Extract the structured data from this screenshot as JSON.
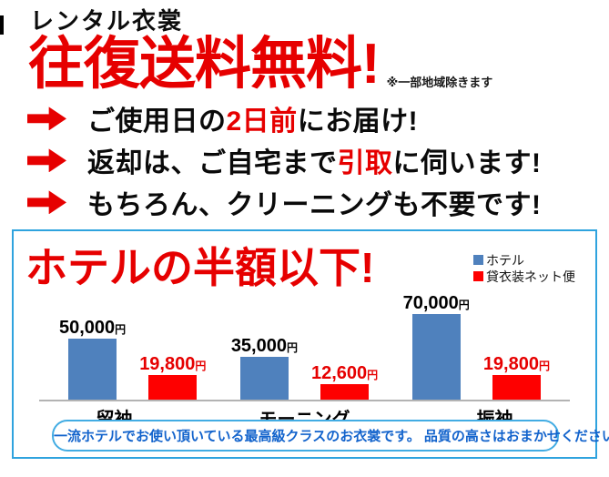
{
  "header": {
    "brand": "レンタル衣裳",
    "headline": "往復送料無料!",
    "headline_note": "※一部地域除きます"
  },
  "features": [
    {
      "pre": "ご使用日の",
      "highlight": "2日前",
      "post": "にお届け!"
    },
    {
      "pre": "返却は、ご自宅まで",
      "highlight": "引取",
      "post": "に伺います!"
    },
    {
      "pre": "もちろん、クリーニングも不要です!",
      "highlight": "",
      "post": ""
    }
  ],
  "panel": {
    "title": "ホテルの半額以下!",
    "legend": [
      {
        "label": "ホテル",
        "color": "#4f81bd"
      },
      {
        "label": "貸衣装ネット便",
        "color": "#fe0000"
      }
    ],
    "footer_note": "一流ホテルでお使い頂いている最高級クラスのお衣裳です。 品質の高さはおまかせください！"
  },
  "chart_data": {
    "type": "bar",
    "title": "ホテルの半額以下!",
    "categories": [
      "留袖",
      "モーニング",
      "振袖"
    ],
    "series": [
      {
        "name": "ホテル",
        "color": "#4f81bd",
        "values": [
          50000,
          35000,
          70000
        ],
        "value_labels": [
          "50,000",
          "35,000",
          "70,000"
        ]
      },
      {
        "name": "貸衣装ネット便",
        "color": "#fe0000",
        "values": [
          19800,
          12600,
          19800
        ],
        "value_labels": [
          "19,800",
          "12,600",
          "19,800"
        ]
      }
    ],
    "unit": "円",
    "xlabel": "",
    "ylabel": "",
    "ylim": [
      0,
      80000
    ],
    "grid": false,
    "legend_position": "top-right"
  },
  "colors": {
    "accent_red": "#e60000",
    "bar_blue": "#4f81bd",
    "bar_red": "#fe0000",
    "panel_border": "#2fa3de",
    "pill_border": "#42ace3",
    "pill_text": "#1263cc",
    "baseline_gray": "#b3b3b3"
  }
}
